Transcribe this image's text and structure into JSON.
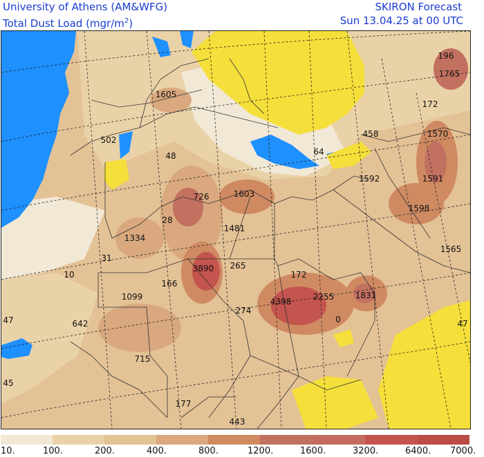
{
  "header": {
    "source_name": "University of Athens (AM&WFG)",
    "field_title": "Total Dust Load (mgr/m",
    "unit_exponent": "2",
    "field_close": ")",
    "model": "SKIRON Forecast",
    "valid_time": "Sun 13.04.25 at 00 UTC"
  },
  "colors": {
    "sea": "#1e90ff",
    "no_dust_land": "#f5df3a",
    "border_lines": "#333333"
  },
  "legend": {
    "colors": [
      "#f2e8d6",
      "#ead2a8",
      "#e3c296",
      "#d9a87e",
      "#cf8a62",
      "#c27060",
      "#c56a5e",
      "#c4544e",
      "#bb4b45"
    ],
    "labels": [
      "10.",
      "100.",
      "200.",
      "400.",
      "800.",
      "1200.",
      "1600.",
      "3200.",
      "6400.",
      "7000."
    ]
  },
  "map_labels": [
    "196",
    "1765",
    "172",
    "1570",
    "1605",
    "458",
    "502",
    "64",
    "48",
    "1592",
    "1591",
    "726",
    "1603",
    "1598",
    "28",
    "1481",
    "1334",
    "1565",
    "31",
    "3890",
    "265",
    "10",
    "172",
    "166",
    "1099",
    "4398",
    "2255",
    "1831",
    "274",
    "47",
    "0",
    "642",
    "47",
    "715",
    "45",
    "177",
    "443"
  ]
}
